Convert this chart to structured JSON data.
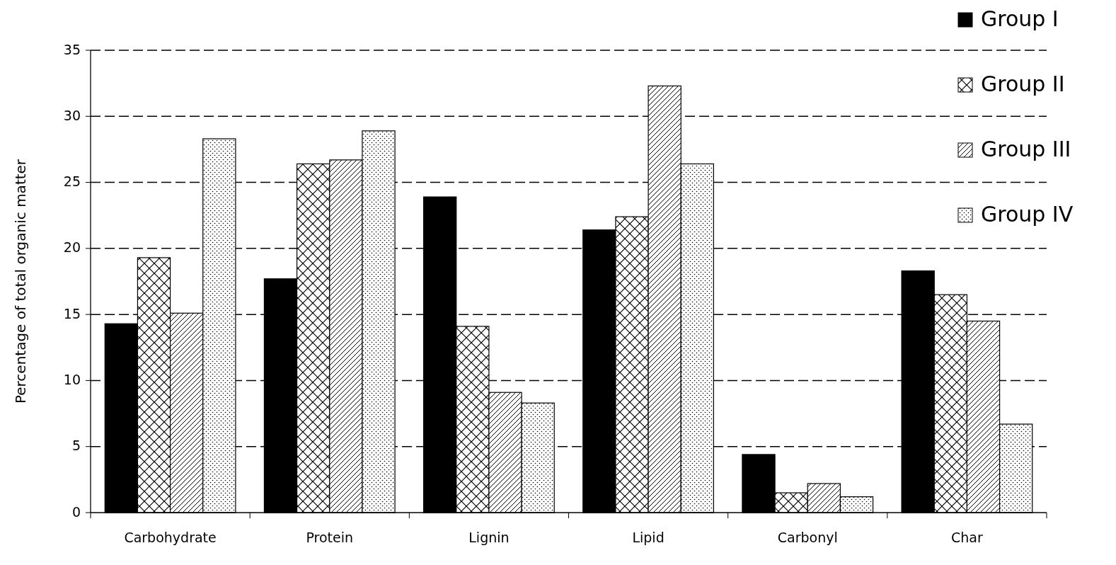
{
  "chart_data": {
    "type": "bar",
    "ylabel": "Percentage of total organic matter",
    "categories": [
      "Carbohydrate",
      "Protein",
      "Lignin",
      "Lipid",
      "Carbonyl",
      "Char"
    ],
    "series": [
      {
        "name": "Group I",
        "color": "#000000",
        "values": [
          14.3,
          17.7,
          23.9,
          21.4,
          4.4,
          18.3
        ]
      },
      {
        "name": "Group II",
        "color": "#000000",
        "values": [
          19.3,
          26.4,
          14.1,
          22.4,
          1.5,
          16.5
        ]
      },
      {
        "name": "Group III",
        "color": "#000000",
        "values": [
          15.1,
          26.7,
          9.1,
          32.3,
          2.2,
          14.5
        ]
      },
      {
        "name": "Group IV",
        "color": "#000000",
        "values": [
          28.3,
          28.9,
          8.3,
          26.4,
          1.2,
          6.7
        ]
      }
    ],
    "ylim": [
      0,
      35
    ],
    "yticks": [
      0,
      5,
      10,
      15,
      20,
      25,
      30,
      35
    ],
    "grid": "y",
    "legend": "top right"
  }
}
